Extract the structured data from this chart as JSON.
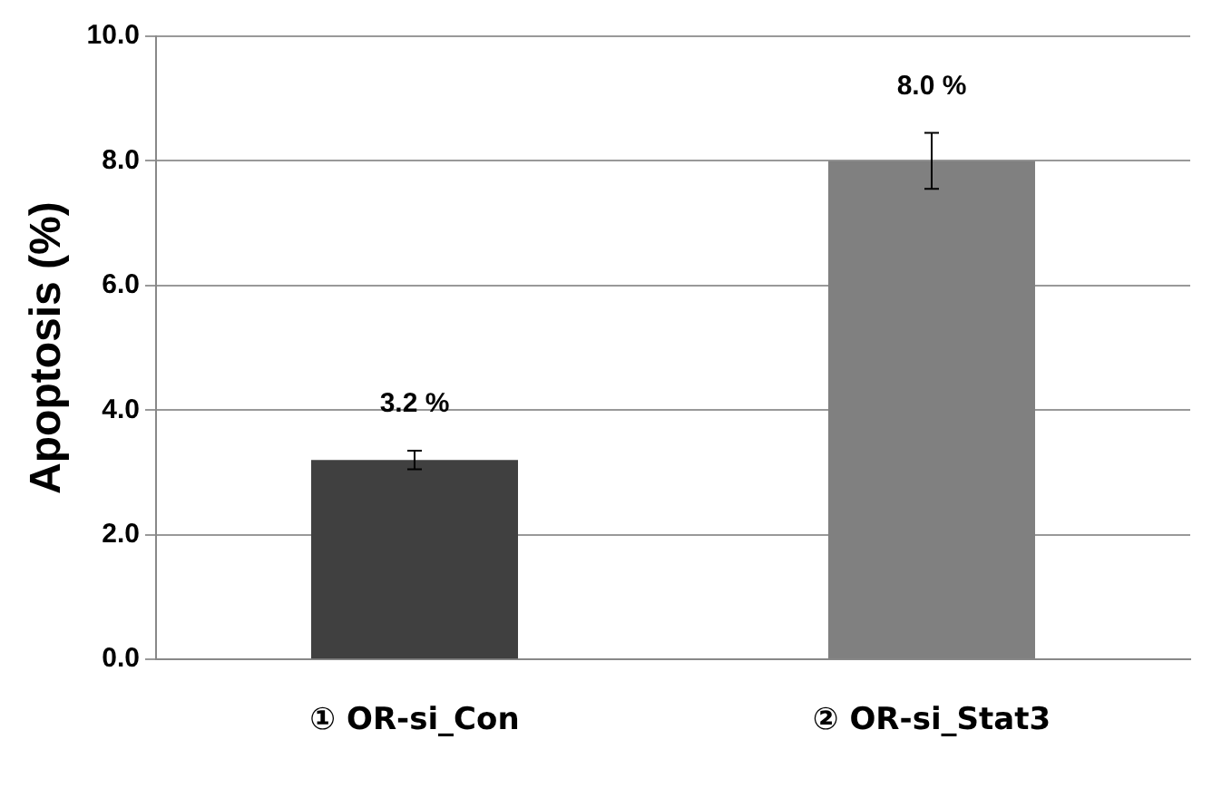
{
  "chart_data": {
    "type": "bar",
    "ylabel": "Apoptosis (%)",
    "categories": [
      "① OR-si_Con",
      "② OR-si_Stat3"
    ],
    "values": [
      3.2,
      8.0
    ],
    "colors": [
      "#404040",
      "#808080"
    ],
    "errors": [
      0.15,
      0.45
    ],
    "value_labels": [
      "3.2 %",
      "8.0 %"
    ],
    "ylim": [
      0,
      10
    ],
    "yticks": [
      {
        "value": 0,
        "label": "0.0"
      },
      {
        "value": 2,
        "label": "2.0"
      },
      {
        "value": 4,
        "label": "4.0"
      },
      {
        "value": 6,
        "label": "6.0"
      },
      {
        "value": 8,
        "label": "8.0"
      },
      {
        "value": 10,
        "label": "10.0"
      }
    ],
    "grid": "y",
    "legend": false
  }
}
